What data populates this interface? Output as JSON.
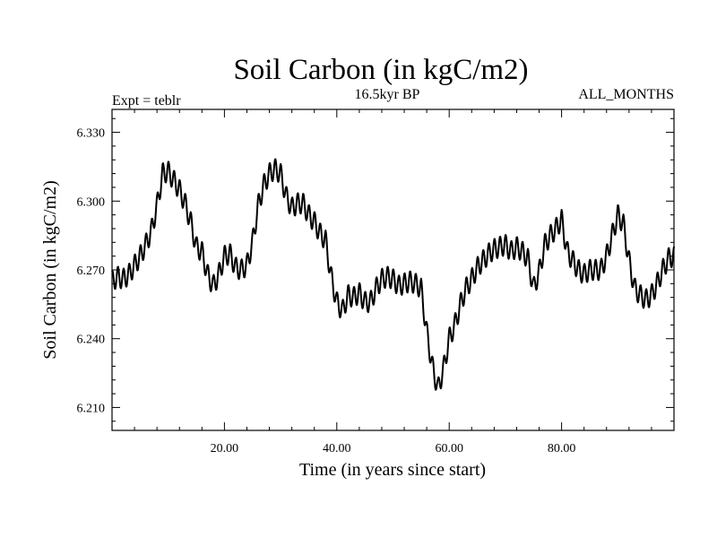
{
  "chart_data": {
    "type": "line",
    "title": "Soil Carbon (in kgC/m2)",
    "subtitle_left": "Expt = teblr",
    "subtitle_center": "16.5kyr BP",
    "subtitle_right": "ALL_MONTHS",
    "xlabel": "Time (in years since start)",
    "ylabel": "Soil Carbon (in kgC/m2)",
    "xlim": [
      0,
      100
    ],
    "ylim": [
      6.2,
      6.34
    ],
    "x_ticks": [
      20,
      40,
      60,
      80
    ],
    "x_tick_labels": [
      "20.00",
      "40.00",
      "60.00",
      "80.00"
    ],
    "y_ticks": [
      6.21,
      6.24,
      6.27,
      6.3,
      6.33
    ],
    "y_tick_labels": [
      "6.210",
      "6.240",
      "6.270",
      "6.300",
      "6.330"
    ],
    "seasonal_amplitude": 0.0045,
    "series": [
      {
        "name": "Soil Carbon",
        "color": "#000000",
        "trend_x": [
          0,
          1,
          2,
          3,
          4,
          5,
          6,
          7,
          8,
          9,
          10,
          11,
          12,
          13,
          14,
          15,
          16,
          17,
          18,
          19,
          20,
          21,
          22,
          23,
          24,
          25,
          26,
          27,
          28,
          29,
          30,
          31,
          32,
          33,
          34,
          35,
          36,
          37,
          38,
          39,
          40,
          41,
          42,
          43,
          44,
          45,
          46,
          47,
          48,
          49,
          50,
          51,
          52,
          53,
          54,
          55,
          56,
          57,
          58,
          59,
          60,
          61,
          62,
          63,
          64,
          65,
          66,
          67,
          68,
          69,
          70,
          71,
          72,
          73,
          74,
          75,
          76,
          77,
          78,
          79,
          80,
          81,
          82,
          83,
          84,
          85,
          86,
          87,
          88,
          89,
          90,
          91,
          92,
          93,
          94,
          95,
          96,
          97,
          98,
          99,
          100
        ],
        "trend_y": [
          6.265,
          6.267,
          6.266,
          6.268,
          6.272,
          6.276,
          6.281,
          6.287,
          6.298,
          6.312,
          6.313,
          6.309,
          6.305,
          6.299,
          6.291,
          6.28,
          6.278,
          6.268,
          6.263,
          6.268,
          6.276,
          6.277,
          6.271,
          6.27,
          6.272,
          6.282,
          6.298,
          6.307,
          6.312,
          6.314,
          6.312,
          6.302,
          6.297,
          6.299,
          6.299,
          6.294,
          6.291,
          6.286,
          6.283,
          6.267,
          6.256,
          6.252,
          6.259,
          6.258,
          6.26,
          6.256,
          6.256,
          6.262,
          6.266,
          6.267,
          6.266,
          6.263,
          6.264,
          6.265,
          6.264,
          6.262,
          6.243,
          6.228,
          6.218,
          6.227,
          6.24,
          6.246,
          6.255,
          6.262,
          6.266,
          6.271,
          6.274,
          6.277,
          6.279,
          6.28,
          6.281,
          6.278,
          6.28,
          6.278,
          6.275,
          6.262,
          6.269,
          6.281,
          6.285,
          6.288,
          6.292,
          6.278,
          6.274,
          6.27,
          6.268,
          6.27,
          6.27,
          6.27,
          6.276,
          6.285,
          6.294,
          6.29,
          6.274,
          6.262,
          6.259,
          6.257,
          6.259,
          6.264,
          6.27,
          6.275,
          6.276
        ]
      }
    ]
  }
}
